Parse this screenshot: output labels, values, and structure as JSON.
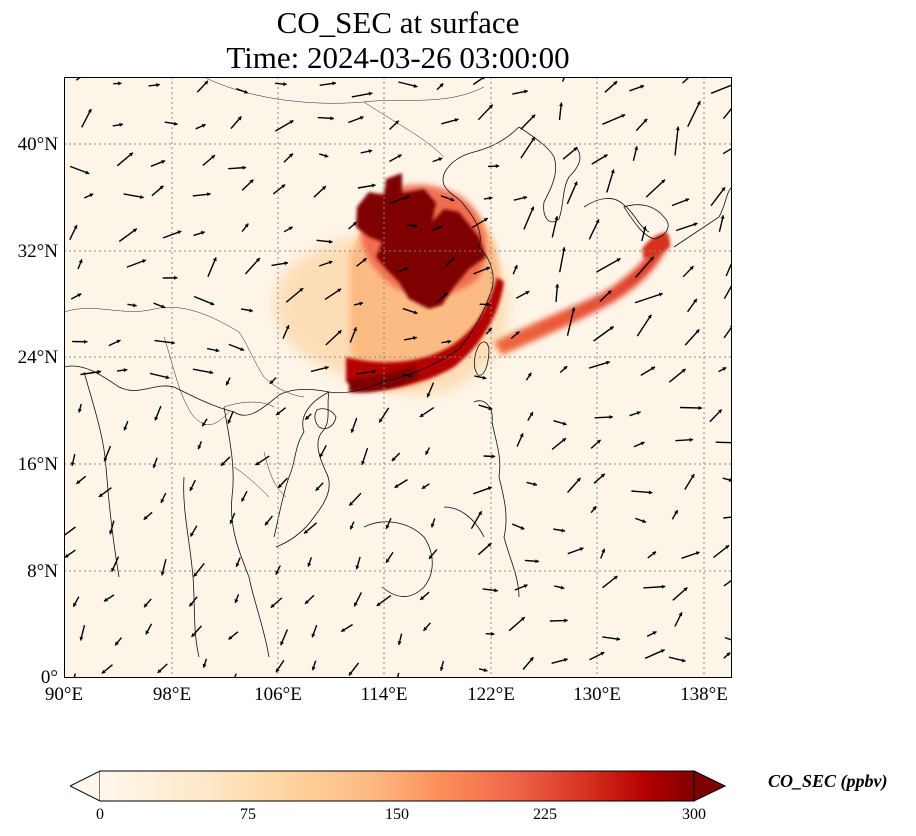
{
  "title": {
    "line1": "CO_SEC at surface",
    "line2": "Time: 2024-03-26 03:00:00"
  },
  "map": {
    "lon_range": [
      90,
      139
    ],
    "lat_range": [
      0,
      45
    ],
    "lon_ticks": [
      "90°E",
      "98°E",
      "106°E",
      "114°E",
      "122°E",
      "130°E",
      "138°E"
    ],
    "lat_ticks": [
      "0°",
      "8°N",
      "16°N",
      "24°N",
      "32°N",
      "40°N"
    ],
    "gridlines": "dotted",
    "field_color_low": "#fef5e9",
    "field_color_high": "#7f0000"
  },
  "colorbar": {
    "label": "CO_SEC (ppbv)",
    "ticks": [
      "0",
      "75",
      "150",
      "225",
      "300"
    ],
    "range": [
      0,
      300
    ],
    "extend": "both",
    "colormap": "OrRd"
  },
  "chart_data": {
    "type": "heatmap",
    "title": "CO_SEC at surface\nTime: 2024-03-26 03:00:00",
    "variable": "CO_SEC",
    "units": "ppbv",
    "xlim": [
      90,
      139
    ],
    "ylim": [
      0,
      45
    ],
    "colorbar_range": [
      0,
      300
    ]
  }
}
